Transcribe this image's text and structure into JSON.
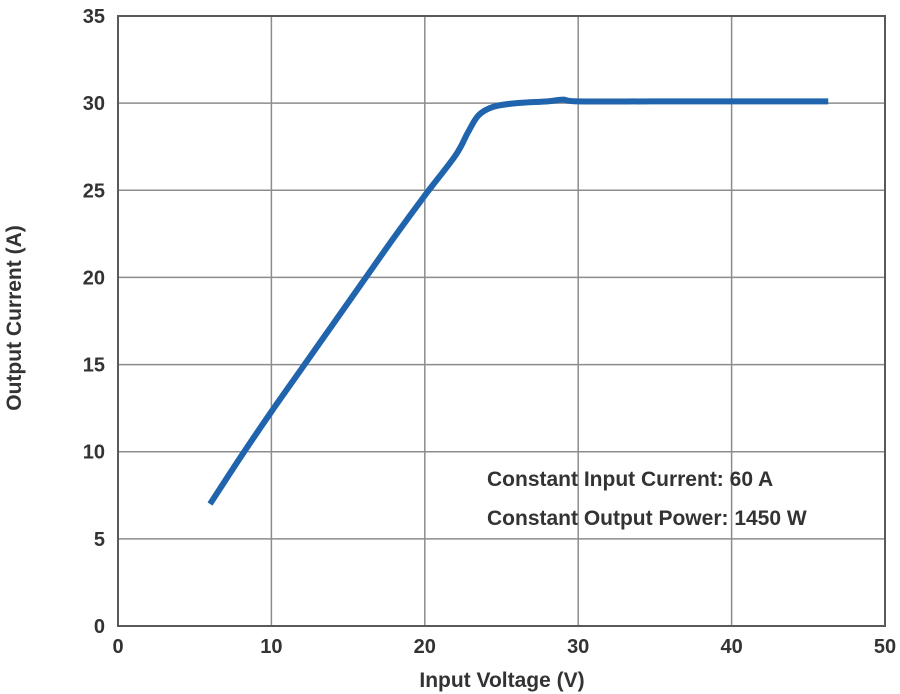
{
  "chart_data": {
    "type": "line",
    "xlabel": "Input Voltage (V)",
    "ylabel": "Output Current (A)",
    "xlim": [
      0,
      50
    ],
    "ylim": [
      0,
      35
    ],
    "xticks": [
      0,
      10,
      20,
      30,
      40,
      50
    ],
    "yticks": [
      0,
      5,
      10,
      15,
      20,
      25,
      30,
      35
    ],
    "grid": true,
    "annotations": [
      "Constant Input Current: 60 A",
      "Constant Output Power: 1450 W"
    ],
    "series": [
      {
        "color": "#1f64ad",
        "x": [
          6,
          8,
          10,
          12,
          14,
          16,
          18,
          20,
          22,
          22.8,
          23.5,
          24.5,
          26,
          28,
          29,
          30,
          35,
          40,
          46.3
        ],
        "y": [
          7.0,
          9.7,
          12.3,
          14.8,
          17.3,
          19.8,
          22.3,
          24.7,
          27.0,
          28.3,
          29.3,
          29.8,
          30.0,
          30.1,
          30.2,
          30.1,
          30.1,
          30.1,
          30.1
        ]
      }
    ]
  }
}
